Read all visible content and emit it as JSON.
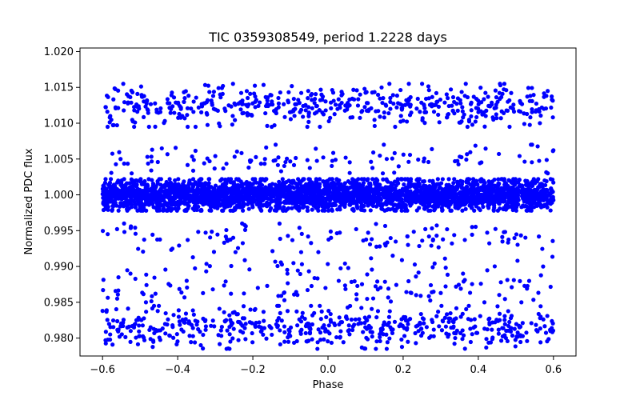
{
  "chart_data": {
    "type": "scatter",
    "title": "TIC 0359308549, period 1.2228 days",
    "xlabel": "Phase",
    "ylabel": "Normalized PDC flux",
    "xlim": [
      -0.66,
      0.66
    ],
    "ylim": [
      0.9775,
      1.0205
    ],
    "x_ticks": [
      -0.6,
      -0.4,
      -0.2,
      0.0,
      0.2,
      0.4,
      0.6
    ],
    "x_tick_labels": [
      "−0.6",
      "−0.4",
      "−0.2",
      "0.0",
      "0.2",
      "0.4",
      "0.6"
    ],
    "y_ticks": [
      0.98,
      0.985,
      0.99,
      0.995,
      1.0,
      1.005,
      1.01,
      1.015,
      1.02
    ],
    "y_tick_labels": [
      "0.980",
      "0.985",
      "0.990",
      "0.995",
      "1.000",
      "1.005",
      "1.010",
      "1.015",
      "1.020"
    ],
    "grid": false,
    "legend": "none",
    "marker_color": "#0000ff",
    "series": [
      {
        "x_range": [
          -0.6,
          0.6
        ],
        "bands": [
          {
            "center": 1.0,
            "spread": 0.0022,
            "points": 3200
          },
          {
            "center": 1.0125,
            "spread": 0.003,
            "points": 520
          },
          {
            "center": 0.9815,
            "spread": 0.003,
            "points": 520
          },
          {
            "center": 1.005,
            "spread": 0.002,
            "points": 110
          },
          {
            "center": 0.994,
            "spread": 0.002,
            "points": 110
          },
          {
            "center": 0.987,
            "spread": 0.002,
            "points": 110
          },
          {
            "center": 0.99,
            "spread": 0.0015,
            "points": 40
          }
        ]
      }
    ]
  }
}
